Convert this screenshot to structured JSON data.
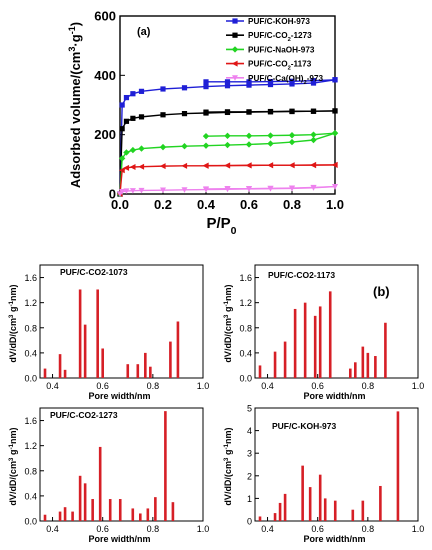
{
  "chart_data": [
    {
      "type": "line",
      "panel_label": "(a)",
      "xlabel": "P/P",
      "xlabel_sub": "0",
      "ylabel_parts": [
        "Adsorbed volume/(cm",
        "3",
        "·g",
        "-1",
        ")"
      ],
      "xlim": [
        0.0,
        1.0
      ],
      "ylim": [
        0,
        600
      ],
      "xticks": [
        "0.0",
        "0.2",
        "0.4",
        "0.6",
        "0.8",
        "1.0"
      ],
      "yticks": [
        "0",
        "200",
        "400",
        "600"
      ],
      "legend_position": "top-right",
      "series": [
        {
          "name": "PUF/C-KOH-973",
          "name_parts": [
            "PUF/C-KOH-973"
          ],
          "color": "#1f1fd6",
          "marker": "square",
          "x": [
            0.0,
            0.01,
            0.03,
            0.06,
            0.1,
            0.2,
            0.3,
            0.4,
            0.5,
            0.6,
            0.7,
            0.8,
            0.9,
            1.0
          ],
          "adsorption": [
            0,
            300,
            325,
            338,
            346,
            354,
            358,
            362,
            365,
            367,
            369,
            371,
            374,
            385
          ],
          "desorption": [
            378,
            378,
            378,
            379,
            380,
            382,
            385
          ]
        },
        {
          "name": "PUF/C-CO2-1273",
          "name_parts": [
            "PUF/C-CO",
            "2",
            "-1273"
          ],
          "color": "#000000",
          "marker": "square",
          "x": [
            0.0,
            0.01,
            0.03,
            0.06,
            0.1,
            0.2,
            0.3,
            0.4,
            0.5,
            0.6,
            0.7,
            0.8,
            0.9,
            1.0
          ],
          "adsorption": [
            0,
            220,
            245,
            255,
            260,
            267,
            271,
            273,
            275,
            276,
            277,
            278,
            279,
            280
          ],
          "desorption": [
            276,
            277,
            277,
            278,
            279,
            279,
            280
          ]
        },
        {
          "name": "PUF/C-NaOH-973",
          "name_parts": [
            "PUF/C-NaOH-973"
          ],
          "color": "#22d422",
          "marker": "diamond",
          "x": [
            0.0,
            0.01,
            0.03,
            0.06,
            0.1,
            0.2,
            0.3,
            0.4,
            0.5,
            0.6,
            0.7,
            0.8,
            0.9,
            1.0
          ],
          "adsorption": [
            0,
            120,
            140,
            148,
            153,
            158,
            161,
            163,
            165,
            167,
            170,
            175,
            182,
            205
          ],
          "desorption": [
            195,
            196,
            196,
            197,
            198,
            200,
            205
          ]
        },
        {
          "name": "PUF/C-CO2-1173",
          "name_parts": [
            "PUF/C-CO",
            "2",
            "-1173"
          ],
          "color": "#e01616",
          "marker": "triangle-left",
          "x": [
            0.0,
            0.01,
            0.03,
            0.06,
            0.1,
            0.2,
            0.3,
            0.4,
            0.5,
            0.6,
            0.7,
            0.8,
            0.9,
            1.0
          ],
          "adsorption": [
            0,
            80,
            88,
            91,
            92,
            94,
            95,
            95,
            96,
            96,
            97,
            97,
            97,
            98
          ],
          "desorption": [
            96,
            96,
            97,
            97,
            97,
            98,
            98
          ]
        },
        {
          "name": "PUF/C-Ca(OH)2-973",
          "name_parts": [
            "PUF/C-Ca(OH)",
            "2",
            "-973"
          ],
          "color": "#ee82ee",
          "marker": "triangle-down",
          "x": [
            0.0,
            0.01,
            0.03,
            0.06,
            0.1,
            0.2,
            0.3,
            0.4,
            0.5,
            0.6,
            0.7,
            0.8,
            0.9,
            1.0
          ],
          "adsorption": [
            0,
            8,
            10,
            11,
            12,
            13,
            14,
            15,
            16,
            17,
            18,
            19,
            21,
            25
          ],
          "desorption": [
            17,
            18,
            18,
            19,
            20,
            22,
            25
          ]
        }
      ]
    },
    {
      "type": "bar",
      "panel_label": "",
      "title": "PUF/C-CO2-1073",
      "xlabel": "Pore width/nm",
      "ylabel_parts": [
        "dV/dD/(cm",
        "3",
        " g",
        "-1",
        "nm)"
      ],
      "xlim": [
        0.35,
        1.0
      ],
      "ylim": [
        0,
        1.8
      ],
      "xticks": [
        "0.4",
        "0.6",
        "0.8",
        "1.0"
      ],
      "yticks": [
        "0.0",
        "0.4",
        "0.8",
        "1.2",
        "1.6"
      ],
      "x": [
        0.37,
        0.43,
        0.45,
        0.51,
        0.53,
        0.58,
        0.6,
        0.7,
        0.74,
        0.77,
        0.79,
        0.87,
        0.9
      ],
      "values": [
        0.15,
        0.38,
        0.13,
        1.41,
        0.85,
        1.41,
        0.47,
        0.22,
        0.22,
        0.4,
        0.18,
        0.58,
        0.9
      ]
    },
    {
      "type": "bar",
      "panel_label": "(b)",
      "title": "PUF/C-CO2-1173",
      "xlabel": "Pore width/nm",
      "ylabel_parts": [
        "dV/dD/(cm",
        "3",
        " g",
        "-1",
        "nm)"
      ],
      "xlim": [
        0.35,
        1.0
      ],
      "ylim": [
        0,
        1.8
      ],
      "xticks": [
        "0.4",
        "0.6",
        "0.8",
        "1.0"
      ],
      "yticks": [
        "0.0",
        "0.4",
        "0.8",
        "1.2",
        "1.6"
      ],
      "x": [
        0.37,
        0.43,
        0.47,
        0.51,
        0.55,
        0.59,
        0.61,
        0.65,
        0.73,
        0.75,
        0.78,
        0.8,
        0.83,
        0.87
      ],
      "values": [
        0.2,
        0.42,
        0.58,
        1.1,
        1.2,
        0.99,
        1.14,
        1.38,
        0.15,
        0.25,
        0.5,
        0.4,
        0.35,
        0.88
      ]
    },
    {
      "type": "bar",
      "panel_label": "",
      "title": "PUF/C-CO2-1273",
      "xlabel": "Pore width/nm",
      "ylabel_parts": [
        "dV/dD/(cm",
        "3",
        " g",
        "-1",
        "nm)"
      ],
      "xlim": [
        0.35,
        1.0
      ],
      "ylim": [
        0,
        1.8
      ],
      "xticks": [
        "0.4",
        "0.6",
        "0.8",
        "1.0"
      ],
      "yticks": [
        "0.0",
        "0.4",
        "0.8",
        "1.2",
        "1.6"
      ],
      "x": [
        0.37,
        0.43,
        0.45,
        0.48,
        0.51,
        0.53,
        0.56,
        0.59,
        0.63,
        0.67,
        0.72,
        0.75,
        0.78,
        0.81,
        0.85,
        0.88
      ],
      "values": [
        0.1,
        0.15,
        0.22,
        0.15,
        0.72,
        0.6,
        0.35,
        1.18,
        0.35,
        0.35,
        0.2,
        0.12,
        0.2,
        0.38,
        1.75,
        0.3
      ]
    },
    {
      "type": "bar",
      "panel_label": "",
      "title": "PUF/C-KOH-973",
      "xlabel": "Pore width/nm",
      "ylabel_parts": [
        "dV/dD/(cm",
        "3",
        " g",
        "-1",
        "nm)"
      ],
      "xlim": [
        0.35,
        1.0
      ],
      "ylim": [
        0,
        5
      ],
      "xticks": [
        "0.4",
        "0.6",
        "0.8",
        "1.0"
      ],
      "yticks": [
        "0",
        "1",
        "2",
        "3",
        "4",
        "5"
      ],
      "x": [
        0.37,
        0.43,
        0.45,
        0.47,
        0.54,
        0.57,
        0.61,
        0.63,
        0.67,
        0.74,
        0.78,
        0.85,
        0.92
      ],
      "values": [
        0.2,
        0.35,
        0.8,
        1.2,
        2.45,
        1.5,
        2.05,
        1.0,
        0.9,
        0.5,
        0.9,
        1.55,
        4.85
      ]
    }
  ]
}
